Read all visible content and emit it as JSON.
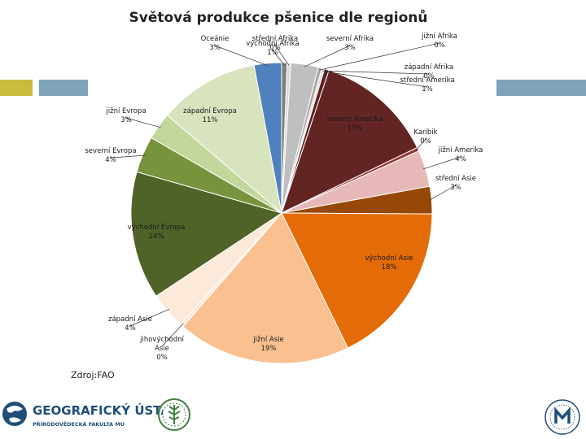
{
  "chart_data": {
    "type": "pie",
    "title": "Světová produkce pšenice dle regionů",
    "slices": [
      {
        "lines": [
          "Oceánie",
          "3%"
        ],
        "value": 3,
        "color": "#4f81bd"
      },
      {
        "lines": [
          "východní Afrika",
          "1%"
        ],
        "value": 0.6,
        "color": "#7f7f7f"
      },
      {
        "lines": [
          "střední Afrika",
          "0%"
        ],
        "value": 0.4,
        "color": "#d9d9d9"
      },
      {
        "lines": [
          "severní Afrika",
          "3%"
        ],
        "value": 3,
        "color": "#bfbfbf"
      },
      {
        "lines": [
          "jižní Afrika",
          "0%"
        ],
        "value": 0.4,
        "color": "#a6a6a6"
      },
      {
        "lines": [
          "západní Afrika",
          "0%"
        ],
        "value": 0.3,
        "color": "#e0e0e0"
      },
      {
        "lines": [
          "střední Amerika",
          "1%"
        ],
        "value": 0.5,
        "color": "#5c1f1f"
      },
      {
        "lines": [
          "severní Amerika",
          "13%"
        ],
        "value": 13,
        "color": "#632523"
      },
      {
        "lines": [
          "Karibik",
          "0%"
        ],
        "value": 0.4,
        "color": "#943634"
      },
      {
        "lines": [
          "jižní Amerika",
          "4%"
        ],
        "value": 4,
        "color": "#e6b9b8"
      },
      {
        "lines": [
          "střední Asie",
          "3%"
        ],
        "value": 3,
        "color": "#974806"
      },
      {
        "lines": [
          "východní Asie",
          "18%"
        ],
        "value": 18,
        "color": "#e36c09"
      },
      {
        "lines": [
          "jižní Asie",
          "19%"
        ],
        "value": 19,
        "color": "#fac08f"
      },
      {
        "lines": [
          "jihovýchodní",
          "Asie",
          "0%"
        ],
        "value": 0.4,
        "color": "#fde9d9"
      },
      {
        "lines": [
          "západní Asie",
          "4%"
        ],
        "value": 4,
        "color": "#fde9d9"
      },
      {
        "lines": [
          "východní Evropa",
          "14%"
        ],
        "value": 14,
        "color": "#4f6228"
      },
      {
        "lines": [
          "severní Evropa",
          "4%"
        ],
        "value": 4,
        "color": "#77933c"
      },
      {
        "lines": [
          "jižní Evropa",
          "3%"
        ],
        "value": 3,
        "color": "#c3d69b"
      },
      {
        "lines": [
          "západní Evropa",
          "11%"
        ],
        "value": 11,
        "color": "#d7e4bd"
      }
    ]
  },
  "source": "Zdroj:FAO",
  "logo": {
    "name": "GEOGRAFICKÝ ÚSTAV",
    "subtitle": "PŘÍRODOVĚDECKÁ FAKULTA MU"
  },
  "colors": {
    "accent_yellow": "#c8bc3c",
    "accent_blue": "#7fa3b8",
    "logo_blue": "#1f4e79",
    "logo_green": "#3f7f3f"
  }
}
